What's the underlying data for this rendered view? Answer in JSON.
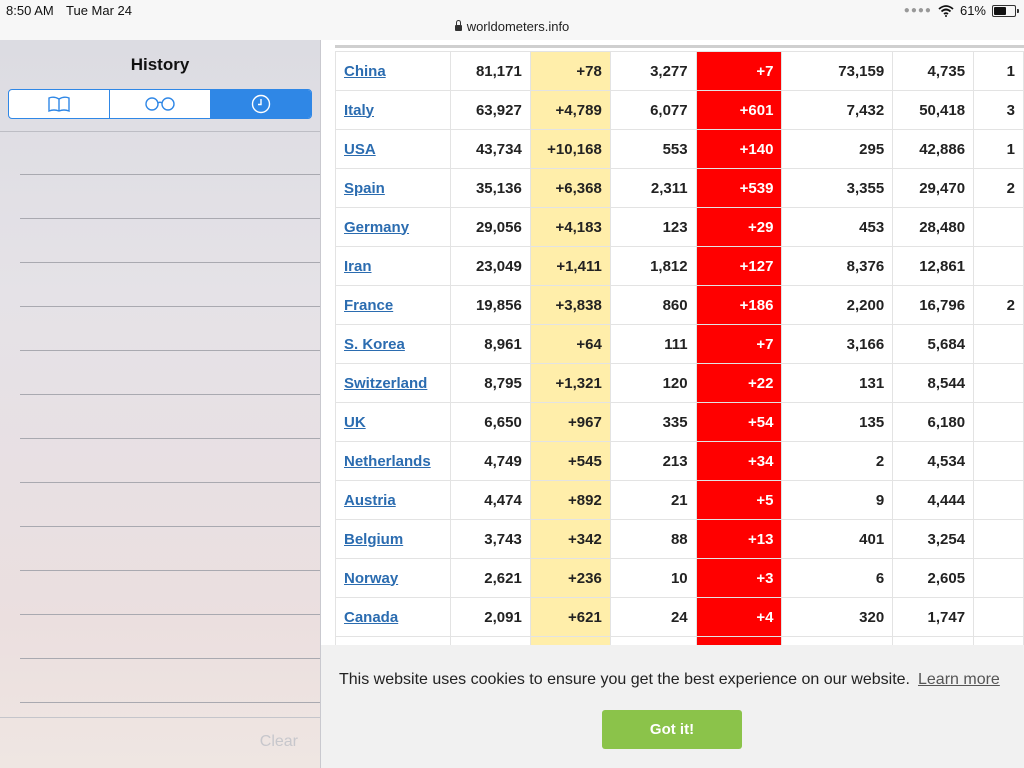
{
  "status_bar": {
    "time": "8:50 AM",
    "date": "Tue Mar 24",
    "url": "worldometers.info",
    "battery": "61%"
  },
  "sidebar": {
    "title": "History",
    "tabs": [
      {
        "icon": "bookmarks-icon",
        "selected": false
      },
      {
        "icon": "reading-list-icon",
        "selected": false
      },
      {
        "icon": "history-clock-icon",
        "selected": true
      }
    ],
    "clear_label": "Clear"
  },
  "table": {
    "colors": {
      "new_cases_bg": "#ffeeaa",
      "new_deaths_bg": "#ff0000",
      "link": "#2b6cb0"
    },
    "rows": [
      {
        "country": "China",
        "cases": "81,171",
        "new_cases": "+78",
        "deaths": "3,277",
        "new_deaths": "+7",
        "recovered": "73,159",
        "active": "4,735",
        "serious": "1"
      },
      {
        "country": "Italy",
        "cases": "63,927",
        "new_cases": "+4,789",
        "deaths": "6,077",
        "new_deaths": "+601",
        "recovered": "7,432",
        "active": "50,418",
        "serious": "3"
      },
      {
        "country": "USA",
        "cases": "43,734",
        "new_cases": "+10,168",
        "deaths": "553",
        "new_deaths": "+140",
        "recovered": "295",
        "active": "42,886",
        "serious": "1"
      },
      {
        "country": "Spain",
        "cases": "35,136",
        "new_cases": "+6,368",
        "deaths": "2,311",
        "new_deaths": "+539",
        "recovered": "3,355",
        "active": "29,470",
        "serious": "2"
      },
      {
        "country": "Germany",
        "cases": "29,056",
        "new_cases": "+4,183",
        "deaths": "123",
        "new_deaths": "+29",
        "recovered": "453",
        "active": "28,480",
        "serious": ""
      },
      {
        "country": "Iran",
        "cases": "23,049",
        "new_cases": "+1,411",
        "deaths": "1,812",
        "new_deaths": "+127",
        "recovered": "8,376",
        "active": "12,861",
        "serious": ""
      },
      {
        "country": "France",
        "cases": "19,856",
        "new_cases": "+3,838",
        "deaths": "860",
        "new_deaths": "+186",
        "recovered": "2,200",
        "active": "16,796",
        "serious": "2"
      },
      {
        "country": "S. Korea",
        "cases": "8,961",
        "new_cases": "+64",
        "deaths": "111",
        "new_deaths": "+7",
        "recovered": "3,166",
        "active": "5,684",
        "serious": ""
      },
      {
        "country": "Switzerland",
        "cases": "8,795",
        "new_cases": "+1,321",
        "deaths": "120",
        "new_deaths": "+22",
        "recovered": "131",
        "active": "8,544",
        "serious": ""
      },
      {
        "country": "UK",
        "cases": "6,650",
        "new_cases": "+967",
        "deaths": "335",
        "new_deaths": "+54",
        "recovered": "135",
        "active": "6,180",
        "serious": ""
      },
      {
        "country": "Netherlands",
        "cases": "4,749",
        "new_cases": "+545",
        "deaths": "213",
        "new_deaths": "+34",
        "recovered": "2",
        "active": "4,534",
        "serious": ""
      },
      {
        "country": "Austria",
        "cases": "4,474",
        "new_cases": "+892",
        "deaths": "21",
        "new_deaths": "+5",
        "recovered": "9",
        "active": "4,444",
        "serious": ""
      },
      {
        "country": "Belgium",
        "cases": "3,743",
        "new_cases": "+342",
        "deaths": "88",
        "new_deaths": "+13",
        "recovered": "401",
        "active": "3,254",
        "serious": ""
      },
      {
        "country": "Norway",
        "cases": "2,621",
        "new_cases": "+236",
        "deaths": "10",
        "new_deaths": "+3",
        "recovered": "6",
        "active": "2,605",
        "serious": ""
      },
      {
        "country": "Canada",
        "cases": "2,091",
        "new_cases": "+621",
        "deaths": "24",
        "new_deaths": "+4",
        "recovered": "320",
        "active": "1,747",
        "serious": ""
      }
    ]
  },
  "cookie_banner": {
    "message": "This website uses cookies to ensure you get the best experience on our website.",
    "learn_more": "Learn more",
    "accept_label": "Got it!",
    "accept_color": "#8bc34a"
  }
}
